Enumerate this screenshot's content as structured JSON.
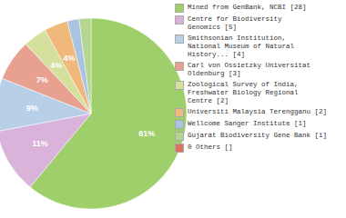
{
  "chart_data": {
    "type": "pie",
    "categories": [
      "Mined from GenBank, NCBI [28]",
      "Centre for Biodiversity\nGenomics [5]",
      "Smithsonian Institution,\nNational Museum of Natural\nHistory... [4]",
      "Carl von Ossietzky Universitat\nOldenburg [3]",
      "Zoological Survey of India,\nFreshwater Biology Regional\nCentre [2]",
      "Universiti Malaysia Terengganu [2]",
      "Wellcome Sanger Institute [1]",
      "Gujarat Biodiversity Gene Bank [1]",
      "0 Others []"
    ],
    "values": [
      61,
      11,
      9,
      7,
      4,
      4,
      2,
      2,
      0
    ],
    "value_labels": [
      "61%",
      "11%",
      "9%",
      "7%",
      "4%",
      "4%",
      null,
      null,
      null
    ],
    "colors": [
      "#9ecf6a",
      "#d9b3d9",
      "#b8cfe8",
      "#e8a090",
      "#d4e09b",
      "#f0b87a",
      "#a8c4e0",
      "#b5d590",
      "#e07060"
    ],
    "data_labels": true,
    "legend": "right"
  }
}
